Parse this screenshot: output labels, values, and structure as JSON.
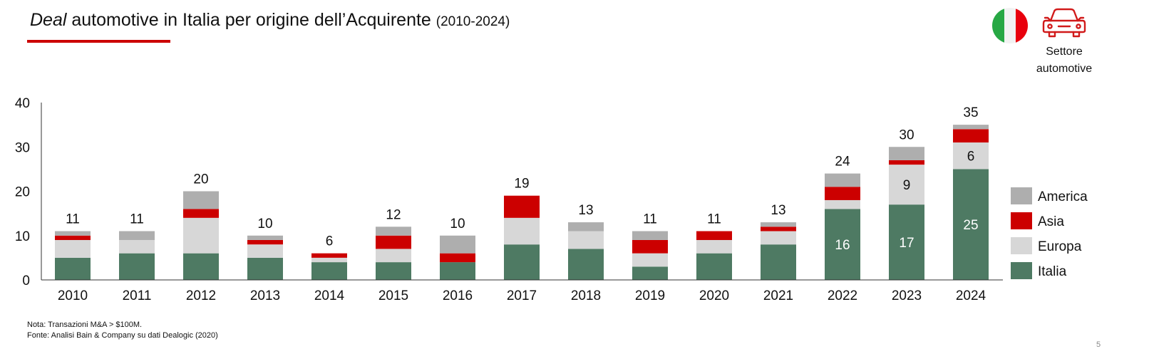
{
  "title": {
    "lead": "Deal",
    "main": " automotive in Italia per origine dell’Acquirente",
    "range": "(2010-2024)"
  },
  "badge": {
    "icon": "italy-flag-icon",
    "colors": [
      "#27a844",
      "#f2f2f2",
      "#e8000d"
    ]
  },
  "sector": {
    "icon": "car-icon",
    "line1": "Settore",
    "line2": "automotive",
    "color": "#d11a1a"
  },
  "chart_data": {
    "type": "bar",
    "stacked": true,
    "categories": [
      "2010",
      "2011",
      "2012",
      "2013",
      "2014",
      "2015",
      "2016",
      "2017",
      "2018",
      "2019",
      "2020",
      "2021",
      "2022",
      "2023",
      "2024"
    ],
    "series": [
      {
        "name": "Italia",
        "color": "#4e7a63",
        "values": [
          5,
          6,
          6,
          5,
          4,
          4,
          4,
          8,
          7,
          3,
          6,
          8,
          16,
          17,
          25
        ]
      },
      {
        "name": "Europa",
        "color": "#d7d7d7",
        "values": [
          4,
          3,
          8,
          3,
          1,
          3,
          0,
          6,
          4,
          3,
          3,
          3,
          2,
          9,
          6
        ]
      },
      {
        "name": "Asia",
        "color": "#cc0000",
        "values": [
          1,
          0,
          2,
          1,
          1,
          3,
          2,
          5,
          0,
          3,
          2,
          1,
          3,
          1,
          3
        ]
      },
      {
        "name": "America",
        "color": "#aeaeae",
        "values": [
          1,
          2,
          4,
          1,
          0,
          2,
          4,
          0,
          2,
          2,
          0,
          1,
          3,
          3,
          1
        ]
      }
    ],
    "totals": [
      11,
      11,
      20,
      10,
      6,
      12,
      10,
      19,
      13,
      11,
      11,
      13,
      24,
      30,
      35
    ],
    "segment_labels": [
      {
        "category": "2022",
        "series": "Italia",
        "text": "16"
      },
      {
        "category": "2023",
        "series": "Italia",
        "text": "17"
      },
      {
        "category": "2023",
        "series": "Europa",
        "text": "9"
      },
      {
        "category": "2024",
        "series": "Italia",
        "text": "25"
      },
      {
        "category": "2024",
        "series": "Europa",
        "text": "6"
      }
    ],
    "yticks": [
      0,
      10,
      20,
      30,
      40
    ],
    "ylim": [
      0,
      40
    ],
    "title": "",
    "xlabel": "",
    "ylabel": "",
    "grid": false,
    "legend": {
      "position": "right",
      "order": [
        "America",
        "Asia",
        "Europa",
        "Italia"
      ]
    }
  },
  "notes": {
    "nota": "Nota: Transazioni M&A > $100M.",
    "fonte": "Fonte: Analisi Bain &  Company su dati Dealogic (2020)"
  },
  "page_number": "5"
}
